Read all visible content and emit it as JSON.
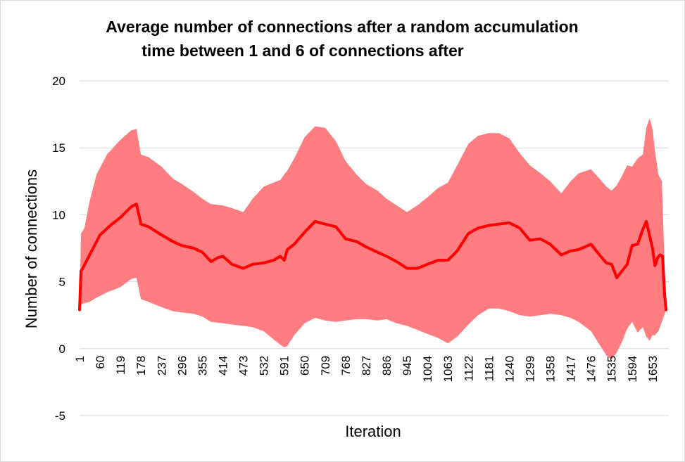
{
  "chart_data": {
    "type": "line",
    "title_lines": [
      "Average number of connections after a  random accumulation",
      "time between 1 and 6 of connections after"
    ],
    "xlabel": "Iteration",
    "ylabel": "Number of connections",
    "ylim": [
      -5,
      20
    ],
    "yticks": [
      -5,
      0,
      5,
      10,
      15,
      20
    ],
    "xlim": [
      1,
      1700
    ],
    "xticks": [
      1,
      60,
      119,
      178,
      237,
      296,
      355,
      414,
      473,
      532,
      591,
      650,
      709,
      768,
      827,
      886,
      945,
      1004,
      1063,
      1122,
      1181,
      1240,
      1299,
      1358,
      1417,
      1476,
      1535,
      1594,
      1653
    ],
    "grid": true,
    "legend": "none",
    "series_color": "#ff0000",
    "band_color": "#ff7c80",
    "series": [
      {
        "x": [
          1,
          5,
          10,
          30,
          60,
          90,
          119,
          150,
          165,
          178,
          200,
          237,
          270,
          296,
          330,
          355,
          380,
          400,
          414,
          440,
          473,
          500,
          532,
          560,
          580,
          591,
          600,
          620,
          650,
          680,
          709,
          740,
          768,
          800,
          827,
          860,
          886,
          915,
          945,
          975,
          1004,
          1035,
          1063,
          1090,
          1122,
          1150,
          1181,
          1210,
          1240,
          1270,
          1299,
          1330,
          1358,
          1390,
          1417,
          1440,
          1476,
          1500,
          1520,
          1535,
          1550,
          1565,
          1580,
          1594,
          1610,
          1625,
          1635,
          1645,
          1653,
          1660,
          1668,
          1675,
          1682,
          1688,
          1692
        ],
        "y": [
          2.9,
          5.8,
          6.0,
          7.0,
          8.5,
          9.2,
          9.8,
          10.6,
          10.8,
          9.3,
          9.1,
          8.5,
          8.0,
          7.7,
          7.5,
          7.2,
          6.5,
          6.8,
          6.9,
          6.3,
          6.0,
          6.3,
          6.4,
          6.6,
          6.9,
          6.6,
          7.4,
          7.8,
          8.7,
          9.5,
          9.3,
          9.1,
          8.2,
          8.0,
          7.6,
          7.2,
          6.9,
          6.5,
          6.0,
          6.0,
          6.3,
          6.6,
          6.6,
          7.3,
          8.6,
          9.0,
          9.2,
          9.3,
          9.4,
          9.0,
          8.1,
          8.2,
          7.8,
          7.0,
          7.3,
          7.4,
          7.8,
          7.0,
          6.4,
          6.3,
          5.3,
          5.8,
          6.3,
          7.7,
          7.8,
          8.9,
          9.5,
          8.4,
          7.5,
          6.2,
          6.8,
          7.0,
          6.9,
          4.0,
          2.9
        ]
      }
    ],
    "error_band": {
      "x": [
        1,
        5,
        15,
        30,
        50,
        80,
        119,
        150,
        165,
        178,
        200,
        237,
        270,
        296,
        330,
        355,
        380,
        414,
        440,
        473,
        500,
        532,
        560,
        580,
        591,
        600,
        620,
        650,
        680,
        709,
        740,
        768,
        800,
        827,
        860,
        886,
        915,
        945,
        975,
        1004,
        1035,
        1063,
        1090,
        1122,
        1150,
        1181,
        1210,
        1240,
        1270,
        1299,
        1330,
        1358,
        1390,
        1417,
        1440,
        1476,
        1500,
        1520,
        1535,
        1550,
        1565,
        1580,
        1594,
        1610,
        1625,
        1635,
        1645,
        1653,
        1660,
        1670,
        1680,
        1692
      ],
      "upper": [
        2.9,
        8.6,
        9.0,
        11.0,
        13.0,
        14.5,
        15.6,
        16.3,
        16.4,
        14.5,
        14.3,
        13.6,
        12.7,
        12.3,
        11.7,
        11.2,
        10.8,
        10.7,
        10.5,
        10.2,
        11.2,
        12.1,
        12.4,
        12.6,
        13.0,
        13.3,
        14.2,
        15.8,
        16.6,
        16.5,
        15.5,
        14.0,
        13.0,
        12.3,
        11.8,
        11.2,
        10.7,
        10.2,
        10.7,
        11.3,
        12.0,
        12.4,
        13.7,
        15.3,
        15.9,
        16.1,
        16.1,
        15.7,
        14.6,
        13.7,
        13.1,
        12.5,
        11.6,
        12.5,
        13.1,
        13.4,
        12.7,
        12.1,
        11.8,
        12.2,
        12.9,
        13.7,
        13.6,
        14.2,
        14.5,
        16.5,
        17.2,
        16.4,
        14.8,
        13.0,
        12.5,
        2.9
      ],
      "lower": [
        2.9,
        3.3,
        3.4,
        3.5,
        3.8,
        4.2,
        4.6,
        5.2,
        5.3,
        3.7,
        3.5,
        3.1,
        2.8,
        2.7,
        2.6,
        2.4,
        2.0,
        1.9,
        1.8,
        1.7,
        1.6,
        1.3,
        0.7,
        0.3,
        0.1,
        0.2,
        1.0,
        1.9,
        2.3,
        2.1,
        2.0,
        2.1,
        2.2,
        2.2,
        2.1,
        2.2,
        1.9,
        1.7,
        1.4,
        1.1,
        0.8,
        0.4,
        0.9,
        1.8,
        2.5,
        3.0,
        3.0,
        2.8,
        2.5,
        2.4,
        2.5,
        2.6,
        2.5,
        2.3,
        2.0,
        1.3,
        0.3,
        -0.5,
        -0.8,
        -0.3,
        0.5,
        1.5,
        2.0,
        1.2,
        1.6,
        0.9,
        0.6,
        1.0,
        1.0,
        1.3,
        2.0,
        2.9
      ]
    }
  }
}
